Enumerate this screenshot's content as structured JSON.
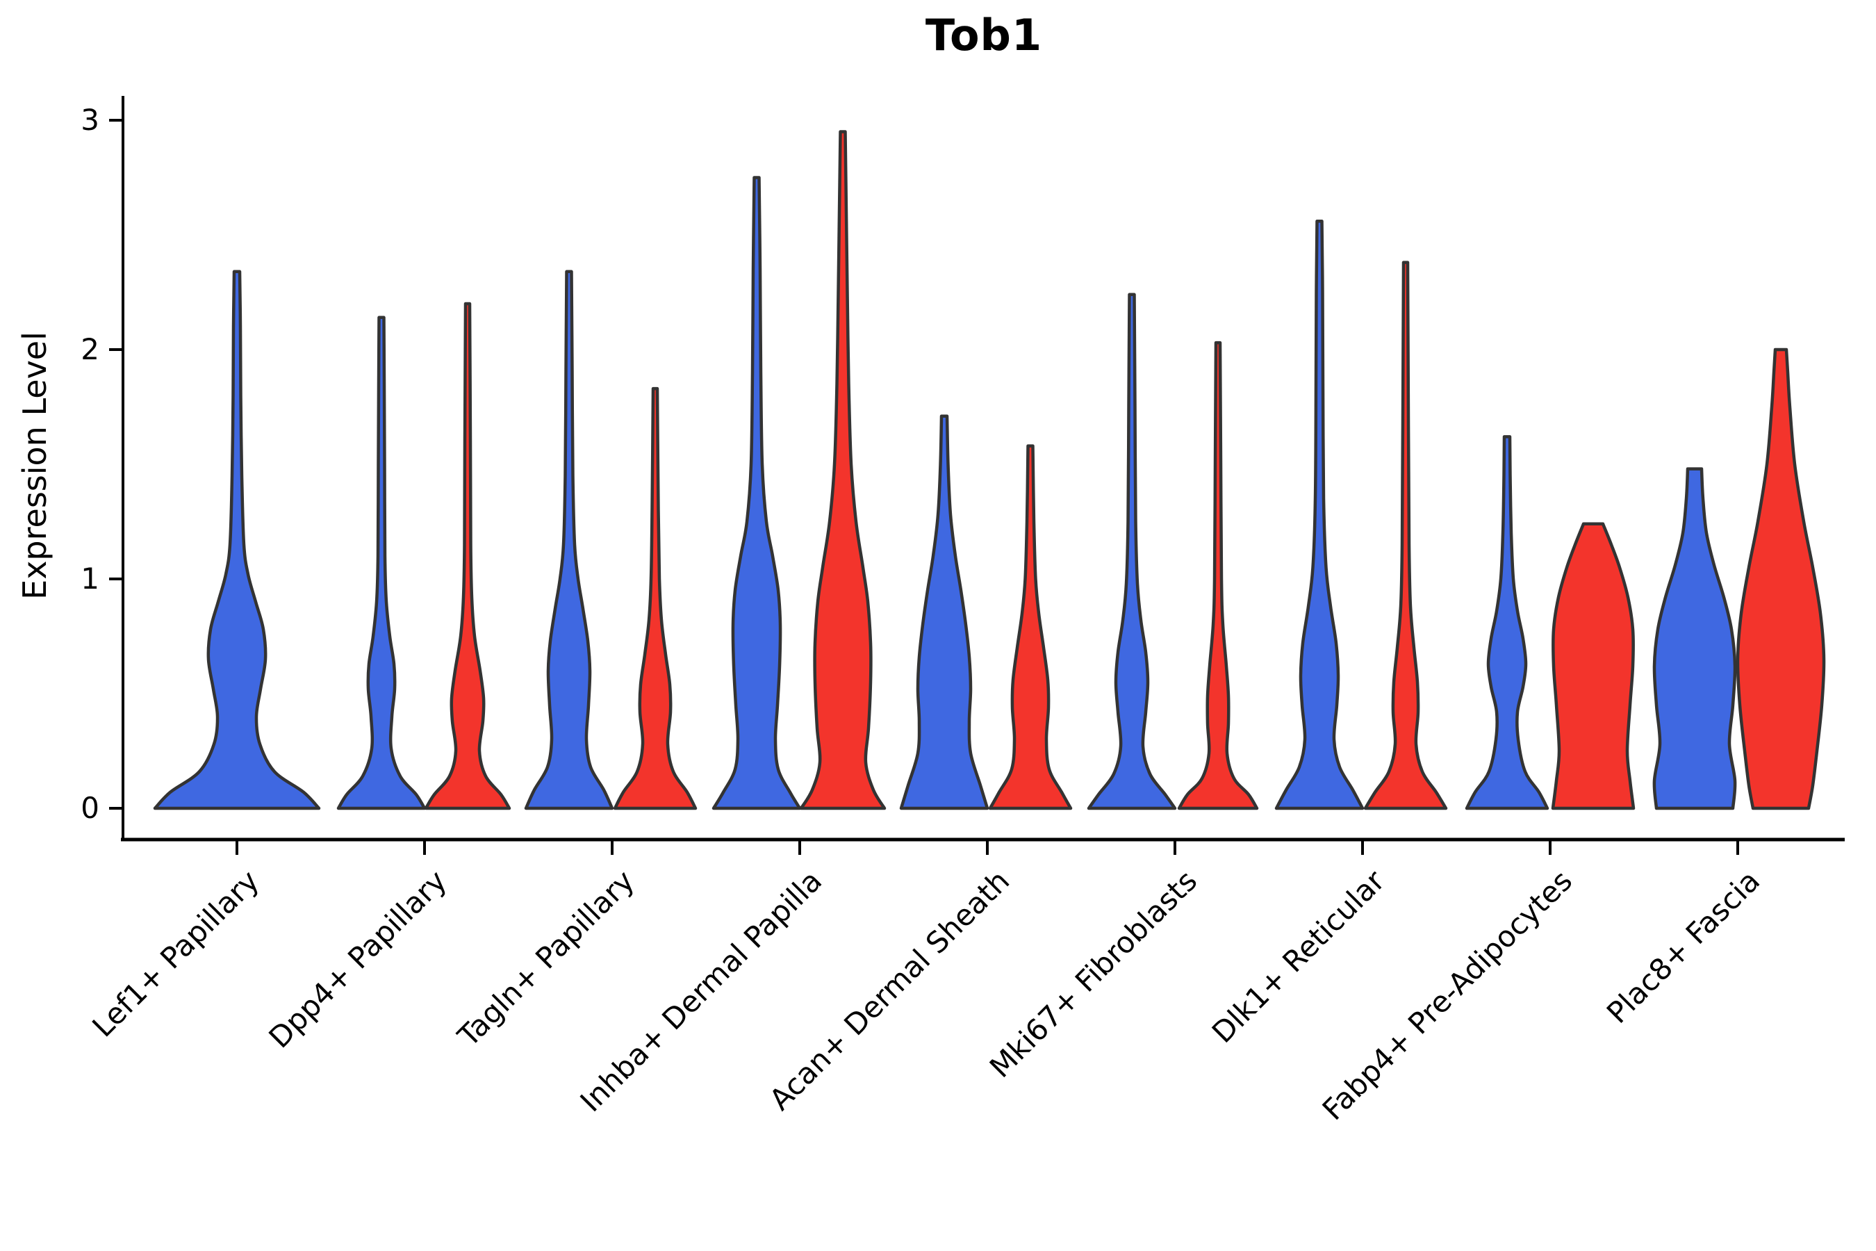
{
  "title": "Tob1",
  "y_axis": {
    "label": "Expression Level",
    "ticks": [
      0,
      1,
      2,
      3
    ]
  },
  "colors": {
    "blue": "#3F68E1",
    "red": "#F3342C",
    "outline": "#333333",
    "axis": "#000000",
    "text": "#000000",
    "background": "#ffffff"
  },
  "chart_data": {
    "type": "violin",
    "title": "Tob1",
    "ylabel": "Expression Level",
    "ylim": [
      0,
      3.05
    ],
    "y_ticks": [
      0,
      1,
      2,
      3
    ],
    "grid": false,
    "legend": "none",
    "categories": [
      "Lef1+ Papillary",
      "Dpp4+ Papillary",
      "Tagln+ Papillary",
      "Inhba+ Dermal Papilla",
      "Acan+ Dermal Sheath",
      "Mki67+ Fibroblasts",
      "Dlk1+ Reticular",
      "Fabp4+ Pre-Adipocytes",
      "Plac8+ Fascia"
    ],
    "groups": [
      "blue",
      "red"
    ],
    "violins": [
      {
        "category": "Lef1+ Papillary",
        "group": "blue",
        "max_value": 2.34,
        "blunt_top": false,
        "x_offset": 0,
        "profile": [
          [
            0,
            118
          ],
          [
            0.07,
            96
          ],
          [
            0.16,
            54
          ],
          [
            0.28,
            33
          ],
          [
            0.4,
            28
          ],
          [
            0.52,
            34
          ],
          [
            0.65,
            41
          ],
          [
            0.78,
            38
          ],
          [
            0.9,
            27
          ],
          [
            1.02,
            16
          ],
          [
            1.15,
            10
          ],
          [
            1.45,
            7
          ],
          [
            1.8,
            5.5
          ],
          [
            2.1,
            5
          ],
          [
            2.34,
            4
          ]
        ]
      },
      {
        "category": "Dpp4+ Papillary",
        "group": "blue",
        "max_value": 2.14,
        "blunt_top": false,
        "x_offset": -62,
        "profile": [
          [
            0,
            62
          ],
          [
            0.06,
            50
          ],
          [
            0.14,
            27
          ],
          [
            0.26,
            14
          ],
          [
            0.4,
            15
          ],
          [
            0.52,
            19
          ],
          [
            0.63,
            18
          ],
          [
            0.75,
            12
          ],
          [
            0.9,
            7
          ],
          [
            1.1,
            5
          ],
          [
            1.5,
            4.5
          ],
          [
            1.85,
            4
          ],
          [
            2.14,
            3.5
          ]
        ]
      },
      {
        "category": "Dpp4+ Papillary",
        "group": "red",
        "max_value": 2.2,
        "blunt_top": false,
        "x_offset": 62,
        "profile": [
          [
            0,
            60
          ],
          [
            0.06,
            48
          ],
          [
            0.14,
            26
          ],
          [
            0.25,
            17
          ],
          [
            0.38,
            22
          ],
          [
            0.48,
            23
          ],
          [
            0.6,
            18
          ],
          [
            0.75,
            10
          ],
          [
            0.92,
            6
          ],
          [
            1.15,
            4.5
          ],
          [
            1.6,
            4
          ],
          [
            2.2,
            3
          ]
        ]
      },
      {
        "category": "Tagln+ Papillary",
        "group": "blue",
        "max_value": 2.34,
        "blunt_top": false,
        "x_offset": -62,
        "profile": [
          [
            0,
            62
          ],
          [
            0.08,
            50
          ],
          [
            0.18,
            31
          ],
          [
            0.3,
            25
          ],
          [
            0.45,
            28
          ],
          [
            0.6,
            30
          ],
          [
            0.73,
            27
          ],
          [
            0.87,
            20
          ],
          [
            1.0,
            13
          ],
          [
            1.15,
            8
          ],
          [
            1.45,
            5.5
          ],
          [
            1.9,
            4.5
          ],
          [
            2.34,
            3.5
          ]
        ]
      },
      {
        "category": "Tagln+ Papillary",
        "group": "red",
        "max_value": 1.83,
        "blunt_top": false,
        "x_offset": 62,
        "profile": [
          [
            0,
            58
          ],
          [
            0.07,
            46
          ],
          [
            0.16,
            26
          ],
          [
            0.28,
            18
          ],
          [
            0.42,
            22
          ],
          [
            0.54,
            21
          ],
          [
            0.67,
            15
          ],
          [
            0.82,
            9
          ],
          [
            1.0,
            6
          ],
          [
            1.3,
            4.5
          ],
          [
            1.83,
            3
          ]
        ]
      },
      {
        "category": "Inhba+ Dermal Papilla",
        "group": "blue",
        "max_value": 2.75,
        "blunt_top": false,
        "x_offset": -62,
        "profile": [
          [
            0,
            62
          ],
          [
            0.07,
            48
          ],
          [
            0.17,
            31
          ],
          [
            0.3,
            27
          ],
          [
            0.45,
            30
          ],
          [
            0.62,
            33
          ],
          [
            0.8,
            34
          ],
          [
            0.95,
            31
          ],
          [
            1.1,
            23
          ],
          [
            1.25,
            14
          ],
          [
            1.5,
            8
          ],
          [
            1.9,
            6
          ],
          [
            2.35,
            5
          ],
          [
            2.75,
            3.5
          ]
        ]
      },
      {
        "category": "Inhba+ Dermal Papilla",
        "group": "red",
        "max_value": 2.95,
        "blunt_top": false,
        "x_offset": 62,
        "profile": [
          [
            0,
            60
          ],
          [
            0.08,
            44
          ],
          [
            0.2,
            33
          ],
          [
            0.35,
            37
          ],
          [
            0.55,
            40
          ],
          [
            0.72,
            40
          ],
          [
            0.9,
            36
          ],
          [
            1.05,
            29
          ],
          [
            1.25,
            19
          ],
          [
            1.5,
            12
          ],
          [
            1.85,
            8.5
          ],
          [
            2.25,
            6.5
          ],
          [
            2.6,
            5
          ],
          [
            2.95,
            3.5
          ]
        ]
      },
      {
        "category": "Acan+ Dermal Sheath",
        "group": "blue",
        "max_value": 1.71,
        "blunt_top": false,
        "x_offset": -62,
        "profile": [
          [
            0,
            62
          ],
          [
            0.1,
            52
          ],
          [
            0.24,
            38
          ],
          [
            0.38,
            36
          ],
          [
            0.52,
            38
          ],
          [
            0.66,
            36
          ],
          [
            0.8,
            31
          ],
          [
            0.95,
            24
          ],
          [
            1.1,
            16
          ],
          [
            1.28,
            9
          ],
          [
            1.5,
            5.5
          ],
          [
            1.71,
            4
          ]
        ]
      },
      {
        "category": "Acan+ Dermal Sheath",
        "group": "red",
        "max_value": 1.58,
        "blunt_top": false,
        "x_offset": 62,
        "profile": [
          [
            0,
            58
          ],
          [
            0.07,
            45
          ],
          [
            0.17,
            27
          ],
          [
            0.3,
            23
          ],
          [
            0.44,
            26
          ],
          [
            0.56,
            25
          ],
          [
            0.7,
            19
          ],
          [
            0.85,
            12
          ],
          [
            1.0,
            7.5
          ],
          [
            1.25,
            5
          ],
          [
            1.58,
            3.5
          ]
        ]
      },
      {
        "category": "Mki67+ Fibroblasts",
        "group": "blue",
        "max_value": 2.24,
        "blunt_top": false,
        "x_offset": -62,
        "profile": [
          [
            0,
            62
          ],
          [
            0.06,
            48
          ],
          [
            0.15,
            26
          ],
          [
            0.27,
            16
          ],
          [
            0.42,
            20
          ],
          [
            0.55,
            23
          ],
          [
            0.68,
            20
          ],
          [
            0.82,
            13
          ],
          [
            0.98,
            8
          ],
          [
            1.25,
            5.5
          ],
          [
            1.75,
            4.5
          ],
          [
            2.24,
            3.5
          ]
        ]
      },
      {
        "category": "Mki67+ Fibroblasts",
        "group": "red",
        "max_value": 2.03,
        "blunt_top": false,
        "x_offset": 62,
        "profile": [
          [
            0,
            56
          ],
          [
            0.06,
            44
          ],
          [
            0.13,
            23
          ],
          [
            0.24,
            13
          ],
          [
            0.37,
            15
          ],
          [
            0.49,
            15
          ],
          [
            0.62,
            12
          ],
          [
            0.8,
            7
          ],
          [
            1.0,
            5
          ],
          [
            1.5,
            4
          ],
          [
            2.03,
            3
          ]
        ]
      },
      {
        "category": "Dlk1+ Reticular",
        "group": "blue",
        "max_value": 2.56,
        "blunt_top": false,
        "x_offset": -62,
        "profile": [
          [
            0,
            62
          ],
          [
            0.08,
            48
          ],
          [
            0.18,
            29
          ],
          [
            0.3,
            21
          ],
          [
            0.45,
            25
          ],
          [
            0.58,
            27
          ],
          [
            0.72,
            24
          ],
          [
            0.88,
            16
          ],
          [
            1.05,
            9.5
          ],
          [
            1.35,
            6
          ],
          [
            1.85,
            5
          ],
          [
            2.25,
            4.5
          ],
          [
            2.56,
            3.5
          ]
        ]
      },
      {
        "category": "Dlk1+ Reticular",
        "group": "red",
        "max_value": 2.38,
        "blunt_top": false,
        "x_offset": 62,
        "profile": [
          [
            0,
            58
          ],
          [
            0.07,
            44
          ],
          [
            0.16,
            24
          ],
          [
            0.28,
            15
          ],
          [
            0.42,
            18
          ],
          [
            0.55,
            17
          ],
          [
            0.7,
            12
          ],
          [
            0.88,
            7
          ],
          [
            1.15,
            5
          ],
          [
            1.7,
            4
          ],
          [
            2.38,
            3
          ]
        ]
      },
      {
        "category": "Fabp4+ Pre-Adipocytes",
        "group": "blue",
        "max_value": 1.62,
        "blunt_top": false,
        "x_offset": -62,
        "profile": [
          [
            0,
            58
          ],
          [
            0.07,
            46
          ],
          [
            0.16,
            26
          ],
          [
            0.3,
            16
          ],
          [
            0.42,
            15
          ],
          [
            0.53,
            23
          ],
          [
            0.63,
            27
          ],
          [
            0.74,
            23
          ],
          [
            0.86,
            15
          ],
          [
            1.0,
            9
          ],
          [
            1.2,
            6
          ],
          [
            1.45,
            4.5
          ],
          [
            1.62,
            4
          ]
        ]
      },
      {
        "category": "Fabp4+ Pre-Adipocytes",
        "group": "red",
        "max_value": 1.24,
        "blunt_top": true,
        "x_offset": 62,
        "profile": [
          [
            0,
            58
          ],
          [
            0.12,
            53
          ],
          [
            0.25,
            49
          ],
          [
            0.45,
            53
          ],
          [
            0.62,
            57
          ],
          [
            0.78,
            57
          ],
          [
            0.92,
            50
          ],
          [
            1.05,
            38
          ],
          [
            1.15,
            26
          ],
          [
            1.24,
            14
          ]
        ]
      },
      {
        "category": "Plac8+ Fascia",
        "group": "blue",
        "max_value": 1.48,
        "blunt_top": true,
        "x_offset": -62,
        "profile": [
          [
            0,
            55
          ],
          [
            0.12,
            58
          ],
          [
            0.28,
            50
          ],
          [
            0.45,
            55
          ],
          [
            0.62,
            58
          ],
          [
            0.78,
            53
          ],
          [
            0.92,
            42
          ],
          [
            1.06,
            28
          ],
          [
            1.2,
            17
          ],
          [
            1.35,
            12
          ],
          [
            1.48,
            10
          ]
        ]
      },
      {
        "category": "Plac8+ Fascia",
        "group": "red",
        "max_value": 2.0,
        "blunt_top": true,
        "x_offset": 62,
        "profile": [
          [
            0,
            40
          ],
          [
            0.1,
            46
          ],
          [
            0.25,
            52
          ],
          [
            0.45,
            59
          ],
          [
            0.65,
            62
          ],
          [
            0.85,
            57
          ],
          [
            1.05,
            46
          ],
          [
            1.25,
            33
          ],
          [
            1.5,
            20
          ],
          [
            1.75,
            13
          ],
          [
            1.9,
            10
          ],
          [
            2.0,
            8
          ]
        ]
      }
    ]
  }
}
